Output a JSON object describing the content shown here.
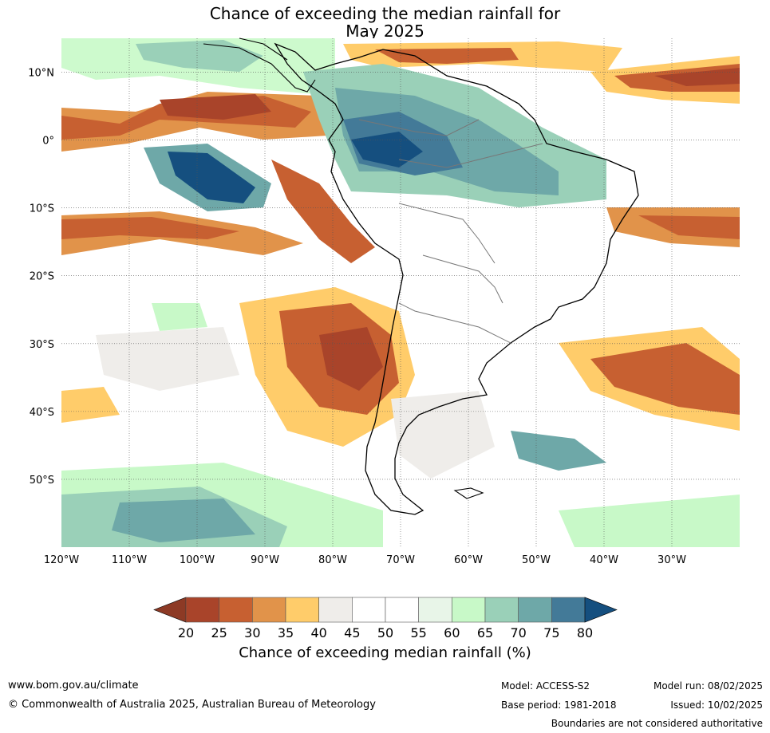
{
  "title": {
    "line1": "Chance of exceeding the median rainfall for",
    "line2": "May 2025"
  },
  "map": {
    "lon_range": [
      -120,
      -20
    ],
    "lat_range": [
      -60,
      15
    ],
    "lon_ticks": [
      "120°W",
      "110°W",
      "100°W",
      "90°W",
      "80°W",
      "70°W",
      "60°W",
      "50°W",
      "40°W",
      "30°W"
    ],
    "lat_ticks": [
      "10°N",
      "0°",
      "10°S",
      "20°S",
      "30°S",
      "40°S",
      "50°S"
    ],
    "gridlines": true
  },
  "colorbar": {
    "title": "Chance of exceeding median rainfall (%)",
    "ticks": [
      "20",
      "25",
      "30",
      "35",
      "40",
      "45",
      "50",
      "55",
      "60",
      "65",
      "70",
      "75",
      "80"
    ],
    "colors": [
      "#a9442a",
      "#c76031",
      "#e1934a",
      "#ffcc6a",
      "#efedea",
      "#ffffff",
      "#ffffff",
      "#e8f5e8",
      "#c8f9c8",
      "#9ad0b8",
      "#6ea8a8",
      "#437a98"
    ],
    "under_color": "#8d3a25",
    "over_color": "#154f7f"
  },
  "footer": {
    "url": "www.bom.gov.au/climate",
    "copyright": "© Commonwealth of Australia 2025, Australian Bureau of Meteorology",
    "model": "Model: ACCESS-S2",
    "base_period": "Base period: 1981-2018",
    "model_run": "Model run: 08/02/2025",
    "issued": "Issued: 10/02/2025",
    "disclaimer": "Boundaries are not considered authoritative"
  }
}
